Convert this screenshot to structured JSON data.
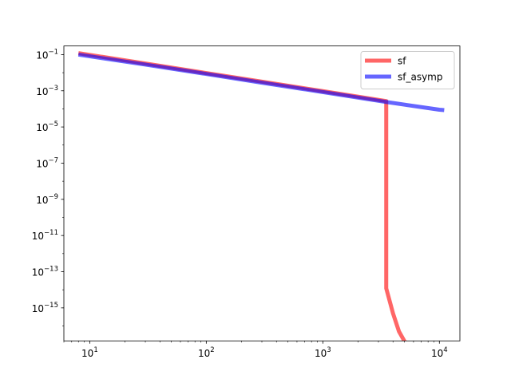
{
  "chart_data": {
    "type": "line",
    "title": "",
    "xlabel": "",
    "ylabel": "",
    "xscale": "log",
    "yscale": "log",
    "xlim": [
      6,
      15000
    ],
    "ylim": [
      1.5e-17,
      0.3
    ],
    "grid": false,
    "legend_position": "top-right",
    "x_ticks": [
      {
        "value": 10,
        "base": "10",
        "exp": "1"
      },
      {
        "value": 100,
        "base": "10",
        "exp": "2"
      },
      {
        "value": 1000,
        "base": "10",
        "exp": "3"
      },
      {
        "value": 10000,
        "base": "10",
        "exp": "4"
      }
    ],
    "y_ticks": [
      {
        "value": 0.1,
        "base": "10",
        "exp": "−1"
      },
      {
        "value": 0.001,
        "base": "10",
        "exp": "−3"
      },
      {
        "value": 1e-05,
        "base": "10",
        "exp": "−5"
      },
      {
        "value": 1e-07,
        "base": "10",
        "exp": "−7"
      },
      {
        "value": 1e-09,
        "base": "10",
        "exp": "−9"
      },
      {
        "value": 1e-11,
        "base": "10",
        "exp": "−11"
      },
      {
        "value": 1e-13,
        "base": "10",
        "exp": "−13"
      },
      {
        "value": 1e-15,
        "base": "10",
        "exp": "−15"
      }
    ],
    "series": [
      {
        "name": "sf",
        "color": "#ff0000",
        "opacity": 0.6,
        "points": [
          [
            8,
            0.12
          ],
          [
            30,
            0.032
          ],
          [
            100,
            0.0095
          ],
          [
            300,
            0.0032
          ],
          [
            1000,
            0.00095
          ],
          [
            3500,
            0.00027
          ],
          [
            3500,
            1.2e-14
          ],
          [
            4000,
            5e-16
          ],
          [
            4500,
            5e-17
          ],
          [
            5000,
            1.5e-17
          ],
          [
            5200,
            1e-17
          ]
        ]
      },
      {
        "name": "sf_asymp",
        "color": "#0000ff",
        "opacity": 0.6,
        "points": [
          [
            8,
            0.1
          ],
          [
            30,
            0.028
          ],
          [
            100,
            0.0085
          ],
          [
            300,
            0.0028
          ],
          [
            1000,
            0.00085
          ],
          [
            3500,
            0.00024
          ],
          [
            10000,
            9e-05
          ],
          [
            11000,
            8.5e-05
          ]
        ]
      }
    ]
  }
}
